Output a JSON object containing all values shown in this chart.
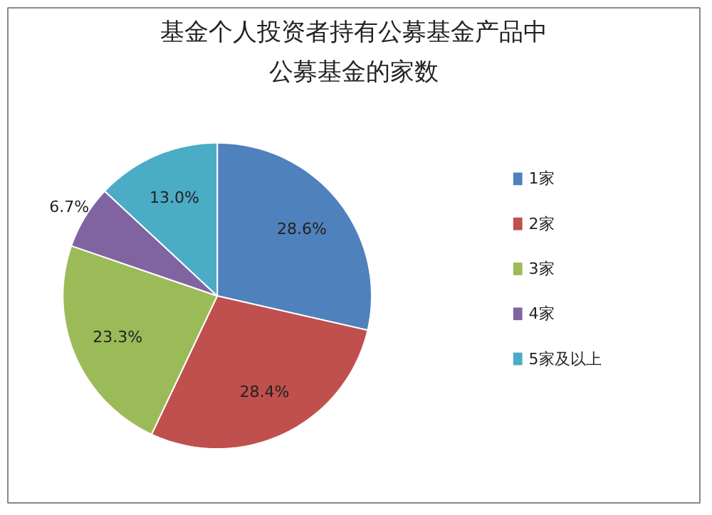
{
  "chart_data": {
    "type": "pie",
    "title": "基金个人投资者持有公募基金产品中公募基金的家数",
    "categories": [
      "1家",
      "2家",
      "3家",
      "4家",
      "5家及以上"
    ],
    "values": [
      28.6,
      28.4,
      23.3,
      6.7,
      13.0
    ],
    "colors": [
      "#4f81bd",
      "#c0504d",
      "#9bbb59",
      "#8064a2",
      "#4bacc6"
    ],
    "value_labels": [
      "28.6%",
      "28.4%",
      "23.3%",
      "6.7%",
      "13.0%"
    ],
    "legend": "right"
  }
}
